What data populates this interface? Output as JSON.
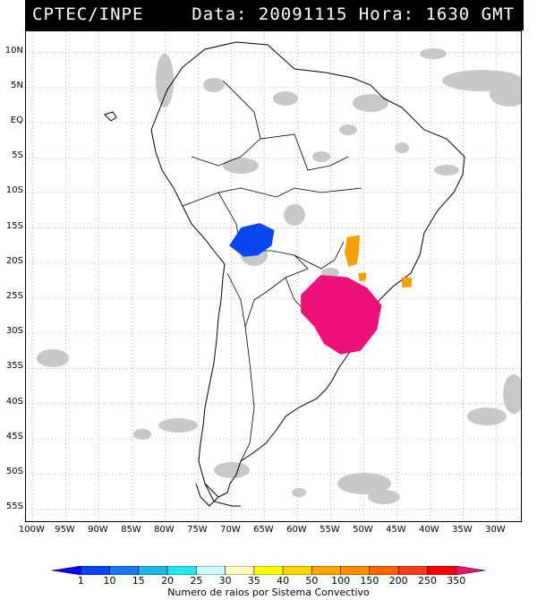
{
  "header": {
    "left_title": "CPTEC/INPE",
    "right_title": "Data: 20091115 Hora: 1630 GMT",
    "background_color": "#000000",
    "text_color": "#ffffff"
  },
  "map": {
    "lat_labels": [
      "10N",
      "5N",
      "EQ",
      "5S",
      "10S",
      "15S",
      "20S",
      "25S",
      "30S",
      "35S",
      "40S",
      "45S",
      "50S",
      "55S"
    ],
    "lon_labels": [
      "100W",
      "95W",
      "90W",
      "85W",
      "80W",
      "75W",
      "70W",
      "65W",
      "60W",
      "55W",
      "50W",
      "45W",
      "40W",
      "35W",
      "30W"
    ],
    "lat_values": [
      10,
      5,
      0,
      -5,
      -10,
      -15,
      -20,
      -25,
      -30,
      -35,
      -40,
      -45,
      -50,
      -55
    ],
    "lon_values": [
      -100,
      -95,
      -90,
      -85,
      -80,
      -75,
      -70,
      -65,
      -60,
      -55,
      -50,
      -45,
      -40,
      -35,
      -30
    ],
    "grid": "dotted",
    "cloud_color": "#c8c8c8",
    "coast_color": "#000000"
  },
  "convective_systems": [
    {
      "name": "bolivia-system",
      "color": "#0a46f0",
      "lon": -66.5,
      "lat": -16.5
    },
    {
      "name": "paraguay-brazil-system",
      "color": "#ee1177",
      "lon": -53.5,
      "lat": -26.5
    },
    {
      "name": "minas-system",
      "color": "#f5a000",
      "lon": -51.5,
      "lat": -18.5
    },
    {
      "name": "sao-paulo-system",
      "color": "#f5a000",
      "lon": -43.5,
      "lat": -22.8
    },
    {
      "name": "parana-system",
      "color": "#f5a000",
      "lon": -50.2,
      "lat": -22.0
    }
  ],
  "legend": {
    "caption": "Numero de raios por Sistema Convectivo",
    "ticks": [
      "1",
      "10",
      "15",
      "20",
      "25",
      "30",
      "35",
      "40",
      "50",
      "100",
      "150",
      "200",
      "250",
      "350"
    ],
    "colors": [
      "#0a00ff",
      "#0a46f0",
      "#1a78ee",
      "#22b4ee",
      "#22e6ee",
      "#ccfcfc",
      "#fcfcbc",
      "#fcfc00",
      "#fcd400",
      "#fca400",
      "#fc8c00",
      "#fc6400",
      "#f83c1c",
      "#f80000",
      "#ee1177"
    ]
  }
}
